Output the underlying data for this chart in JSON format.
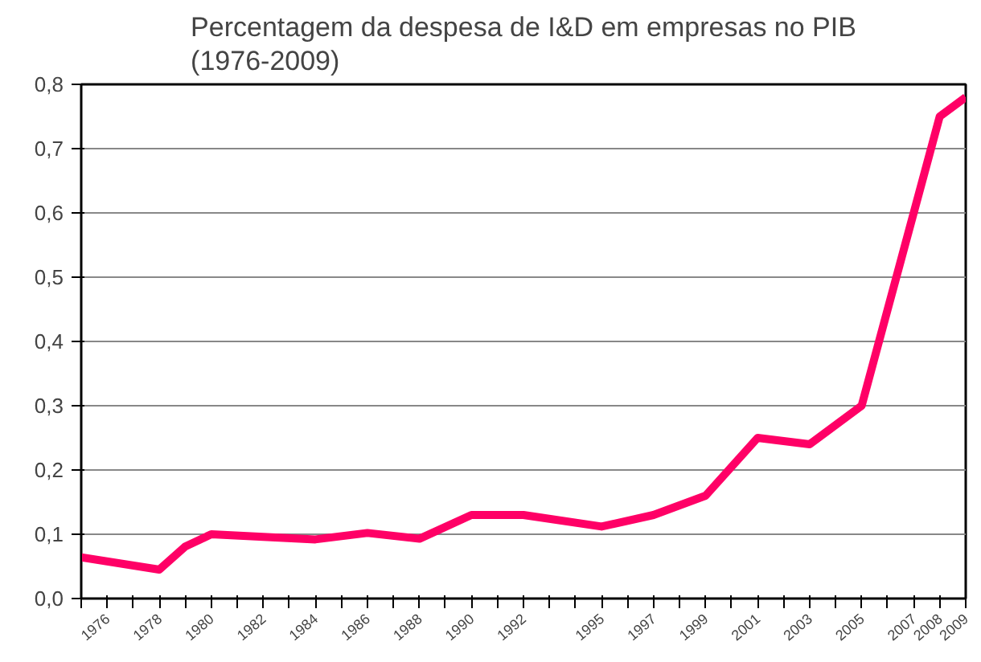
{
  "chart_data": {
    "type": "line",
    "title": "Percentagem da despesa de I&D em empresas no PIB\n(1976-2009)",
    "categories": [
      null,
      "1976",
      null,
      "1978",
      null,
      "1980",
      null,
      "1982",
      null,
      "1984",
      null,
      "1986",
      null,
      "1988",
      null,
      "1990",
      null,
      "1992",
      null,
      null,
      "1995",
      null,
      "1997",
      null,
      "1999",
      null,
      "2001",
      null,
      "2003",
      null,
      "2005",
      null,
      "2007",
      "2008",
      "2009"
    ],
    "series": [
      {
        "color": "#ff0066",
        "values": [
          0.064,
          null,
          null,
          0.045,
          0.081,
          0.1,
          null,
          0.096,
          null,
          0.092,
          null,
          0.102,
          null,
          0.093,
          null,
          0.13,
          null,
          0.13,
          null,
          null,
          0.112,
          null,
          0.13,
          null,
          0.16,
          null,
          0.25,
          null,
          0.24,
          null,
          0.3,
          null,
          null,
          0.75,
          0.78
        ]
      }
    ],
    "ylim": [
      0,
      0.8
    ],
    "yticks": [
      {
        "value": 0,
        "label": "0,0"
      },
      {
        "value": 0.1,
        "label": "0,1"
      },
      {
        "value": 0.2,
        "label": "0,2"
      },
      {
        "value": 0.3,
        "label": "0,3"
      },
      {
        "value": 0.4,
        "label": "0,4"
      },
      {
        "value": 0.5,
        "label": "0,5"
      },
      {
        "value": 0.6,
        "label": "0,6"
      },
      {
        "value": 0.7,
        "label": "0,7"
      },
      {
        "value": 0.8,
        "label": "0,8"
      }
    ],
    "grid": "y",
    "line_style": "solid"
  }
}
